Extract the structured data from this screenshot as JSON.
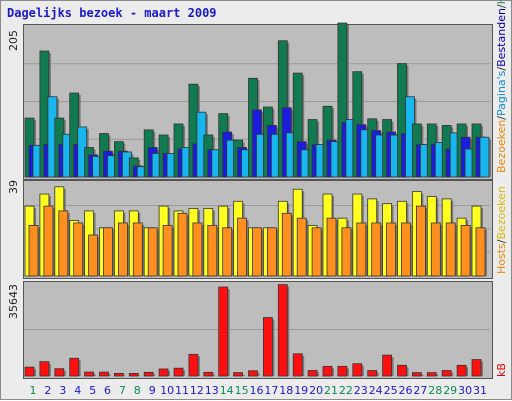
{
  "title": "Dagelijks bezoek - maart 2009",
  "chart_data": [
    {
      "type": "bar",
      "panel": "top",
      "y_label_max": "205",
      "ylim": [
        0,
        205
      ],
      "legend": [
        {
          "name": "Bezoeken",
          "color": "#e78808"
        },
        {
          "name": "/",
          "color": "#333333"
        },
        {
          "name": "Pagina's",
          "color": "#0b8dcf"
        },
        {
          "name": "/",
          "color": "#333333"
        },
        {
          "name": "Bestanden",
          "color": "#0000b0"
        },
        {
          "name": "/",
          "color": "#333333"
        },
        {
          "name": "Hits",
          "color": "#1b8a5e"
        }
      ],
      "series": [
        {
          "name": "Hits",
          "color": "#127a50",
          "values": [
            80,
            171,
            80,
            114,
            40,
            59,
            48,
            26,
            64,
            57,
            72,
            126,
            57,
            86,
            50,
            134,
            95,
            185,
            141,
            78,
            96,
            209,
            143,
            79,
            78,
            154,
            72,
            72,
            70,
            72,
            72
          ]
        },
        {
          "name": "Bestanden",
          "color": "#1c1ce0",
          "values": [
            43,
            44,
            44,
            44,
            30,
            35,
            35,
            15,
            40,
            32,
            38,
            45,
            37,
            61,
            40,
            91,
            70,
            94,
            48,
            44,
            50,
            74,
            71,
            63,
            61,
            59,
            44,
            44,
            38,
            54,
            54
          ]
        },
        {
          "name": "Pagina's",
          "color": "#18b6ef",
          "values": [
            43,
            109,
            58,
            68,
            28,
            29,
            34,
            14,
            32,
            32,
            40,
            88,
            37,
            50,
            37,
            58,
            58,
            60,
            37,
            44,
            48,
            78,
            64,
            57,
            57,
            109,
            44,
            47,
            60,
            38,
            54
          ]
        }
      ]
    },
    {
      "type": "bar",
      "panel": "middle",
      "y_label_max": "39",
      "ylim": [
        0,
        39
      ],
      "legend": [
        {
          "name": "Hosts",
          "color": "#e78808"
        },
        {
          "name": "/",
          "color": "#333333"
        },
        {
          "name": "Bezoeken",
          "color": "#d8b800"
        }
      ],
      "series": [
        {
          "name": "Bezoeken",
          "color": "#ffff20",
          "values": [
            29,
            34,
            37,
            23,
            27,
            20,
            27,
            27,
            20,
            29,
            27,
            28,
            28,
            29,
            31,
            20,
            20,
            31,
            36,
            21,
            34,
            24,
            34,
            32,
            30,
            31,
            35,
            33,
            32,
            24,
            29
          ]
        },
        {
          "name": "Hosts",
          "color": "#ff9020",
          "values": [
            21,
            29,
            27,
            22,
            17,
            20,
            22,
            22,
            20,
            21,
            26,
            22,
            21,
            20,
            24,
            20,
            20,
            26,
            24,
            20,
            24,
            20,
            22,
            22,
            22,
            22,
            29,
            22,
            22,
            21,
            20
          ]
        }
      ]
    },
    {
      "type": "bar",
      "panel": "bottom",
      "y_label_max": "35643",
      "ylim": [
        0,
        35643
      ],
      "legend": [
        {
          "name": "kB",
          "color": "#e00000"
        }
      ],
      "series": [
        {
          "name": "kB",
          "color": "#ff1010",
          "values": [
            3400,
            5500,
            2800,
            6800,
            1500,
            1500,
            1000,
            1000,
            1400,
            2700,
            3000,
            8300,
            1400,
            34100,
            1300,
            2000,
            22400,
            35000,
            8500,
            2100,
            3700,
            3700,
            4700,
            2100,
            8000,
            4100,
            1300,
            1300,
            2100,
            4100,
            6300
          ]
        }
      ]
    }
  ],
  "x_days": [
    "1",
    "2",
    "3",
    "4",
    "5",
    "6",
    "7",
    "8",
    "9",
    "10",
    "11",
    "12",
    "13",
    "14",
    "15",
    "16",
    "17",
    "18",
    "19",
    "20",
    "21",
    "22",
    "23",
    "24",
    "25",
    "26",
    "27",
    "28",
    "29",
    "30",
    "31"
  ],
  "weekend_days": [
    "1",
    "7",
    "8",
    "14",
    "15",
    "21",
    "22",
    "28",
    "29"
  ],
  "colors": {
    "day_normal": "#1a1acc",
    "day_weekend": "#0a8a50",
    "grid": "#9a9a9a",
    "bar_outline": "#333333",
    "bar_shadow": "#7a7a7a"
  }
}
